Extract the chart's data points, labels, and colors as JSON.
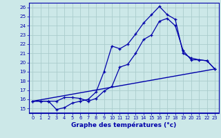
{
  "xlabel": "Graphe des températures (°c)",
  "bg_color": "#cce8e8",
  "line_color": "#0000aa",
  "grid_color": "#aacccc",
  "ylim": [
    14.5,
    26.5
  ],
  "xlim": [
    -0.5,
    23.5
  ],
  "yticks": [
    15,
    16,
    17,
    18,
    19,
    20,
    21,
    22,
    23,
    24,
    25,
    26
  ],
  "xticks": [
    0,
    1,
    2,
    3,
    4,
    5,
    6,
    7,
    8,
    9,
    10,
    11,
    12,
    13,
    14,
    15,
    16,
    17,
    18,
    19,
    20,
    21,
    22,
    23
  ],
  "curve1": {
    "x": [
      0,
      1,
      2,
      3,
      4,
      5,
      6,
      7,
      8,
      9,
      10,
      11,
      12,
      13,
      14,
      15,
      16,
      17,
      18,
      19,
      20,
      21,
      22,
      23
    ],
    "y": [
      15.8,
      15.8,
      15.8,
      14.9,
      15.1,
      15.6,
      15.8,
      16.0,
      16.8,
      19.0,
      21.8,
      21.5,
      22.0,
      23.1,
      24.3,
      25.2,
      26.1,
      25.2,
      24.7,
      21.0,
      20.5,
      20.3,
      20.2,
      19.3
    ]
  },
  "curve2": {
    "x": [
      0,
      1,
      2,
      3,
      4,
      5,
      6,
      7,
      8,
      9,
      10,
      11,
      12,
      13,
      14,
      15,
      16,
      17,
      18,
      19,
      20,
      21,
      22,
      23
    ],
    "y": [
      15.8,
      15.8,
      15.8,
      15.8,
      16.2,
      16.2,
      16.1,
      15.8,
      16.1,
      16.9,
      17.4,
      19.5,
      19.8,
      21.0,
      22.5,
      23.0,
      24.5,
      24.8,
      24.0,
      21.3,
      20.3,
      20.3,
      20.2,
      19.3
    ]
  },
  "curve3": {
    "x": [
      0,
      23
    ],
    "y": [
      15.8,
      19.3
    ]
  }
}
